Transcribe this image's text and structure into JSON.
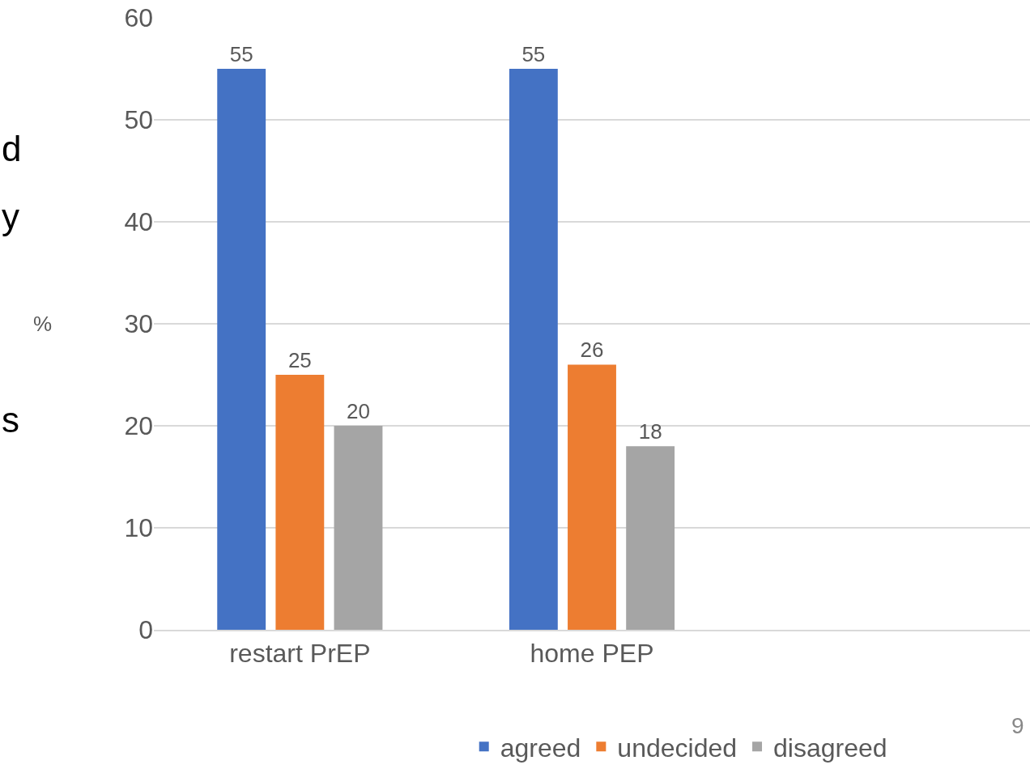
{
  "chart_data": {
    "type": "bar",
    "ylabel": "%",
    "categories": [
      "restart PrEP",
      "home PEP",
      null
    ],
    "series": [
      {
        "name": "agreed",
        "color": "#4472c4",
        "values": [
          55,
          55,
          null
        ]
      },
      {
        "name": "undecided",
        "color": "#ed7d31",
        "values": [
          25,
          26,
          null
        ]
      },
      {
        "name": "disagreed",
        "color": "#a5a5a5",
        "values": [
          20,
          18,
          null
        ]
      }
    ],
    "ylim": [
      0,
      60
    ],
    "yticks": [
      0,
      10,
      20,
      30,
      40,
      50,
      60
    ],
    "grid": "y",
    "legend": "bottom",
    "data_labels": true,
    "annotations": [
      "d",
      "y",
      "s",
      "9"
    ]
  }
}
